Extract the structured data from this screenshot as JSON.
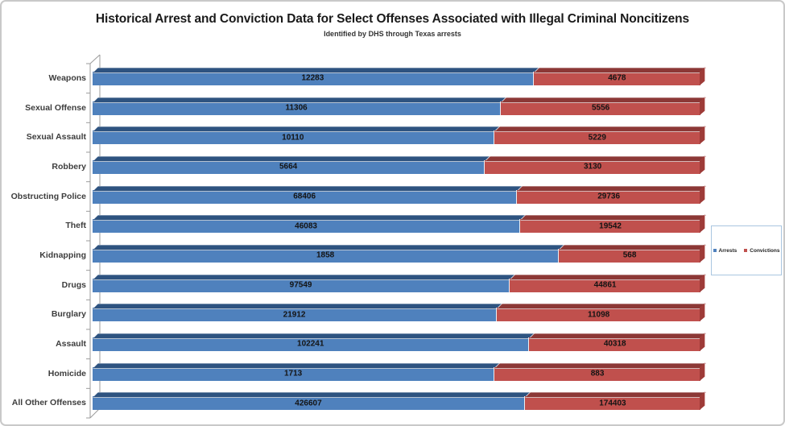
{
  "title": "Historical Arrest and Conviction Data for Select Offenses Associated with Illegal Criminal Noncitizens",
  "subtitle": "Identified by DHS through Texas arrests",
  "colors": {
    "arrests": "#4f81bd",
    "arrests_dark": "#2e5380",
    "convictions": "#c0504d",
    "convictions_dark": "#8c3836",
    "legend_border": "#a9c6e0",
    "axis_line": "#9b9b9b"
  },
  "legend": {
    "items": [
      {
        "label": "Arrests",
        "color": "#4f81bd"
      },
      {
        "label": "Convictions",
        "color": "#c0504d"
      }
    ]
  },
  "chart_data": {
    "type": "bar",
    "subtype": "horizontal-100pct-stacked-3d",
    "title": "Historical Arrest and Conviction Data for Select Offenses Associated with Illegal Criminal Noncitizens",
    "subtitle": "Identified by DHS through Texas arrests",
    "categories": [
      "Weapons",
      "Sexual Offense",
      "Sexual Assault",
      "Robbery",
      "Obstructing Police",
      "Theft",
      "Kidnapping",
      "Drugs",
      "Burglary",
      "Assault",
      "Homicide",
      "All Other Offenses"
    ],
    "series": [
      {
        "name": "Arrests",
        "color": "#4f81bd",
        "values": [
          12283,
          11306,
          10110,
          5664,
          68406,
          46083,
          1858,
          97549,
          21912,
          102241,
          1713,
          426607
        ]
      },
      {
        "name": "Convictions",
        "color": "#c0504d",
        "values": [
          4678,
          5556,
          5229,
          3130,
          29736,
          19542,
          568,
          44861,
          11098,
          40318,
          883,
          174403
        ]
      }
    ],
    "data_labels": true,
    "grid": false,
    "legend_position": "right",
    "xlabel": "",
    "ylabel": ""
  }
}
